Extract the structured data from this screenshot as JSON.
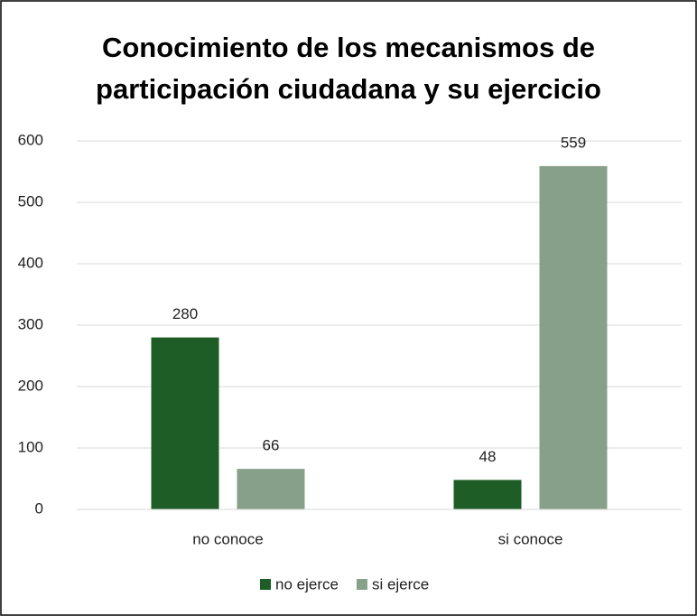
{
  "chart_data": {
    "type": "bar",
    "title": "Conocimiento de los mecanismos de participación ciudadana y su ejercicio",
    "categories": [
      "no conoce",
      "si conoce"
    ],
    "series": [
      {
        "name": "no ejerce",
        "color": "#1e5e26",
        "values": [
          280,
          48
        ]
      },
      {
        "name": "si ejerce",
        "color": "#87a089",
        "values": [
          66,
          559
        ]
      }
    ],
    "ylim": [
      0,
      600
    ],
    "yticks": [
      0,
      100,
      200,
      300,
      400,
      500,
      600
    ],
    "grid": true,
    "legend": "bottom"
  }
}
